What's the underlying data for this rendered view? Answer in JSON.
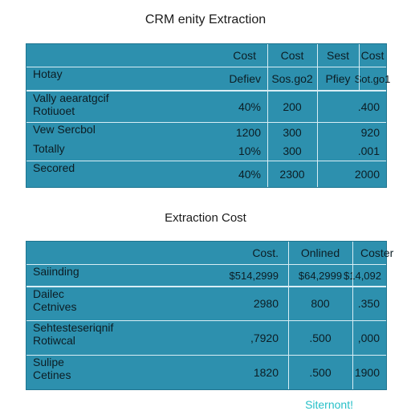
{
  "title_top": "CRM enity Extraction",
  "title_bottom": "Extraction Cost",
  "table1": {
    "header_row1": [
      "",
      "Cost",
      "Cost",
      "Sest",
      "Cost"
    ],
    "header_row2": [
      "Hotay",
      "Defiev",
      "Sos.go2",
      "Pfiey",
      "Sot.go1"
    ],
    "rows": [
      {
        "label": [
          "Vally aearatgcif",
          "Rotiuoet"
        ],
        "c1": "40%",
        "c2": "200",
        "c3": ".400"
      },
      {
        "label": [
          "Vew Sercbol"
        ],
        "c1": "1200",
        "c2": "300",
        "c3": "920"
      },
      {
        "label": [
          "Totally"
        ],
        "c1": "10%",
        "c2": "300",
        "c3": ".001"
      },
      {
        "label": [
          "Secored"
        ],
        "c1": "40%",
        "c2": "2300",
        "c3": "2000"
      }
    ]
  },
  "table2": {
    "header_row1": [
      "",
      "Cost.",
      "Onlined",
      "Coster"
    ],
    "header_row2": [
      "Saiinding",
      "$514,2999",
      "$64,2999",
      "$14,092"
    ],
    "rows": [
      {
        "label": [
          "Dailec",
          "Cetnives"
        ],
        "c1": "2980",
        "c2": "800",
        "c3": ".350"
      },
      {
        "label": [
          "Sehtesteseriqnif",
          "Rotiwcal"
        ],
        "c1": ",7920",
        "c2": ".500",
        "c3": ",000"
      },
      {
        "label": [
          "Sulipe",
          "Cetines"
        ],
        "c1": "1820",
        "c2": ".500",
        "c3": "1900"
      }
    ]
  },
  "footer_text": "Siternont!",
  "colors": {
    "panel_bg": "#2d90ae",
    "grid_line": "#d8eef5",
    "footer": "#27c0c8"
  }
}
